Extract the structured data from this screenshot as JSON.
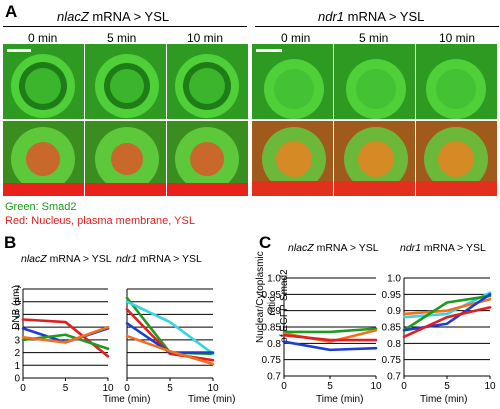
{
  "panel_a": {
    "letter": "A",
    "left_title_gene": "nlacZ",
    "left_title_rest": " mRNA > YSL",
    "right_title_gene": "ndr1",
    "right_title_rest": " mRNA > YSL",
    "times": [
      "0 min",
      "5 min",
      "10 min"
    ],
    "legend_green": "Green: Smad2",
    "legend_red": "Red: Nucleus, plasma membrane, YSL"
  },
  "panel_b": {
    "letter": "B",
    "ylabel": "DNB (µm)",
    "xlabel": "Time (min)"
  },
  "panel_c": {
    "letter": "C",
    "ylabel_line1": "Nuclear/Cytoplasmic ratio",
    "ylabel_line2": "of EGFP-Smad2",
    "xlabel": "Time (min)"
  },
  "chart_data": [
    {
      "type": "line",
      "panel": "B-left",
      "title_gene": "nlacZ",
      "title_rest": " mRNA > YSL",
      "x": [
        0,
        5,
        10
      ],
      "xticks": [
        "0",
        "5",
        "10"
      ],
      "yticks": [
        "0",
        "1",
        "2",
        "3",
        "4",
        "5",
        "6",
        "7"
      ],
      "ylim": [
        0,
        7
      ],
      "xlim": [
        0,
        10
      ],
      "grid": true,
      "series": [
        {
          "color": "#e02020",
          "values": [
            4.6,
            4.4,
            1.7
          ]
        },
        {
          "color": "#1c3fd0",
          "values": [
            3.9,
            2.8,
            3.9
          ]
        },
        {
          "color": "#1e9a1e",
          "values": [
            3.0,
            3.4,
            2.3
          ]
        },
        {
          "color": "#f07020",
          "values": [
            3.2,
            2.8,
            4.0
          ]
        }
      ]
    },
    {
      "type": "line",
      "panel": "B-right",
      "title_gene": "ndr1",
      "title_rest": " mRNA > YSL",
      "x": [
        0,
        5,
        10
      ],
      "xticks": [
        "0",
        "5",
        "10"
      ],
      "yticks": [
        "0",
        "1",
        "2",
        "3",
        "4",
        "5",
        "6",
        "7"
      ],
      "ylim": [
        0,
        7
      ],
      "xlim": [
        0,
        10
      ],
      "grid": true,
      "series": [
        {
          "color": "#1e9a1e",
          "values": [
            6.3,
            2.0,
            1.9
          ]
        },
        {
          "color": "#38d4e0",
          "values": [
            6.0,
            4.4,
            1.9
          ]
        },
        {
          "color": "#e02020",
          "values": [
            5.4,
            1.9,
            1.4
          ]
        },
        {
          "color": "#1c3fd0",
          "values": [
            4.3,
            2.0,
            2.0
          ]
        },
        {
          "color": "#f07020",
          "values": [
            3.3,
            2.1,
            1.1
          ]
        }
      ]
    },
    {
      "type": "line",
      "panel": "C-left",
      "title_gene": "nlacZ",
      "title_rest": " mRNA > YSL",
      "x": [
        0,
        5,
        10
      ],
      "xticks": [
        "0",
        "5",
        "10"
      ],
      "yticks": [
        "0.7",
        "0.75",
        "0.8",
        "0.85",
        "0.9",
        "0.95",
        "1.0"
      ],
      "ylim": [
        0.7,
        1.0
      ],
      "xlim": [
        0,
        10
      ],
      "grid": true,
      "series": [
        {
          "color": "#1e9a1e",
          "values": [
            0.835,
            0.835,
            0.845
          ]
        },
        {
          "color": "#f07020",
          "values": [
            0.83,
            0.805,
            0.84
          ]
        },
        {
          "color": "#e02020",
          "values": [
            0.825,
            0.81,
            0.81
          ]
        },
        {
          "color": "#1c3fd0",
          "values": [
            0.805,
            0.78,
            0.785
          ]
        }
      ]
    },
    {
      "type": "line",
      "panel": "C-right",
      "title_gene": "ndr1",
      "title_rest": " mRNA > YSL",
      "x": [
        0,
        5,
        10
      ],
      "xticks": [
        "0",
        "5",
        "10"
      ],
      "yticks": [
        "0.7",
        "0.75",
        "0.8",
        "0.85",
        "0.9",
        "0.95",
        "1.0"
      ],
      "ylim": [
        0.7,
        1.0
      ],
      "xlim": [
        0,
        10
      ],
      "grid": true,
      "series": [
        {
          "color": "#38d4e0",
          "values": [
            0.88,
            0.89,
            0.955
          ]
        },
        {
          "color": "#f07020",
          "values": [
            0.89,
            0.9,
            0.935
          ]
        },
        {
          "color": "#1e9a1e",
          "values": [
            0.84,
            0.925,
            0.945
          ]
        },
        {
          "color": "#1c3fd0",
          "values": [
            0.84,
            0.86,
            0.95
          ]
        },
        {
          "color": "#e02020",
          "values": [
            0.82,
            0.88,
            0.91
          ]
        }
      ]
    }
  ]
}
